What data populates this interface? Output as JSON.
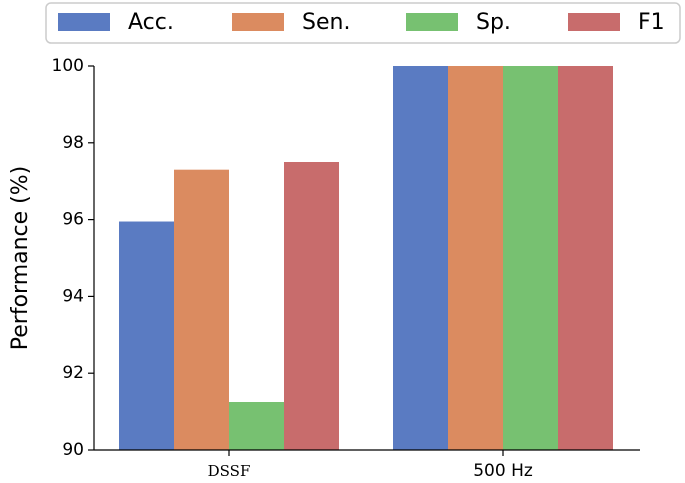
{
  "chart_data": {
    "type": "bar",
    "categories": [
      "DSSF",
      "500 Hz"
    ],
    "series": [
      {
        "name": "Acc.",
        "values": [
          95.95,
          100.0
        ],
        "color": "#5a7bc2"
      },
      {
        "name": "Sen.",
        "values": [
          97.3,
          100.0
        ],
        "color": "#db8b60"
      },
      {
        "name": "Sp.",
        "values": [
          91.25,
          100.0
        ],
        "color": "#77c171"
      },
      {
        "name": "F1",
        "values": [
          97.5,
          100.0
        ],
        "color": "#c86c6c"
      }
    ],
    "xlabel": "",
    "ylabel": "Performance (%)",
    "ylim": [
      90,
      100
    ],
    "yticks": [
      "90",
      "92",
      "94",
      "96",
      "98",
      "100"
    ],
    "grid": false,
    "legend_position": "top"
  }
}
